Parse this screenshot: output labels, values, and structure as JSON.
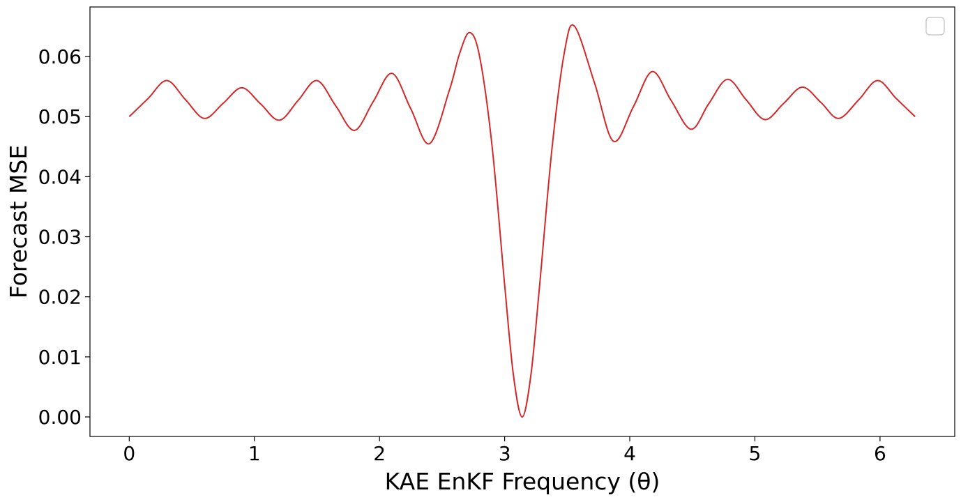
{
  "chart_data": {
    "type": "line",
    "x_label": "KAE EnKF Frequency (θ)",
    "y_label": "Forecast MSE",
    "xlim": [
      -0.314,
      6.597
    ],
    "ylim": [
      -0.00325,
      0.06825
    ],
    "xticks": [
      0,
      1,
      2,
      3,
      4,
      5,
      6
    ],
    "yticks": [
      {
        "value": 0,
        "label": "0.00"
      },
      {
        "value": 0.01,
        "label": "0.01"
      },
      {
        "value": 0.02,
        "label": "0.02"
      },
      {
        "value": 0.03,
        "label": "0.03"
      },
      {
        "value": 0.04,
        "label": "0.04"
      },
      {
        "value": 0.05,
        "label": "0.05"
      },
      {
        "value": 0.06,
        "label": "0.06"
      }
    ],
    "x": [
      0,
      0.15,
      0.3,
      0.45,
      0.6,
      0.75,
      0.9,
      1.05,
      1.2,
      1.35,
      1.5,
      1.65,
      1.8,
      1.95,
      2.1,
      2.25,
      2.4,
      2.56,
      2.64,
      2.72,
      2.8,
      2.9,
      3.0,
      3.07,
      3.14,
      3.21,
      3.28,
      3.38,
      3.48,
      3.56,
      3.72,
      3.87,
      4.03,
      4.18,
      4.33,
      4.49,
      4.63,
      4.78,
      4.93,
      5.08,
      5.23,
      5.38,
      5.53,
      5.67,
      5.83,
      5.98,
      6.13,
      6.28
    ],
    "series": [
      {
        "color": "#d62728",
        "values": [
          0.05,
          0.053,
          0.056,
          0.0528,
          0.0497,
          0.0522,
          0.0548,
          0.0521,
          0.0494,
          0.0527,
          0.056,
          0.0518,
          0.0477,
          0.0525,
          0.0572,
          0.0513,
          0.0455,
          0.0545,
          0.0605,
          0.064,
          0.06,
          0.045,
          0.022,
          0.007,
          0.0,
          0.007,
          0.022,
          0.045,
          0.061,
          0.065,
          0.0555,
          0.0459,
          0.0517,
          0.0575,
          0.0527,
          0.0479,
          0.0521,
          0.0562,
          0.0528,
          0.0495,
          0.0522,
          0.0549,
          0.0523,
          0.0497,
          0.0528,
          0.056,
          0.053,
          0.05
        ]
      }
    ]
  }
}
